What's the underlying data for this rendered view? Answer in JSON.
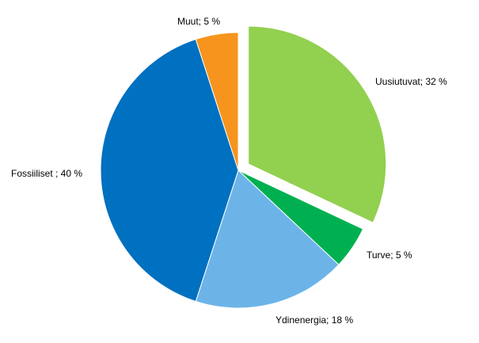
{
  "chart_data": {
    "type": "pie",
    "slices": [
      {
        "label": "Uusiutuvat; 32 %",
        "value": 32,
        "color": "#92d050",
        "exploded": true
      },
      {
        "label": "Turve; 5 %",
        "value": 5,
        "color": "#00b050",
        "exploded": false
      },
      {
        "label": "Ydinenergia; 18 %",
        "value": 18,
        "color": "#6cb4e8",
        "exploded": false
      },
      {
        "label": "Fossiiliset ; 40 %",
        "value": 40,
        "color": "#0070c0",
        "exploded": false
      },
      {
        "label": "Muut; 5 %",
        "value": 5,
        "color": "#f7941d",
        "exploded": false
      }
    ]
  }
}
